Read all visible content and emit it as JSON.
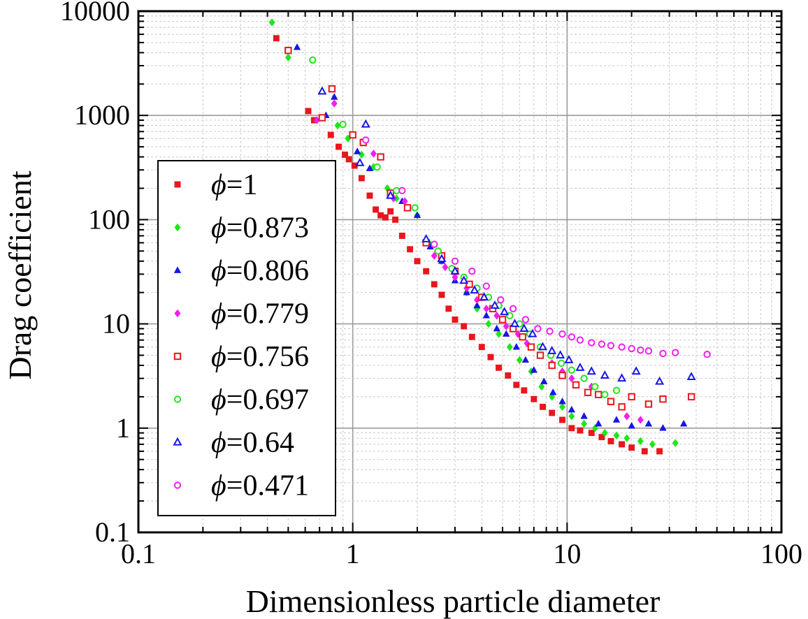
{
  "chart_data": {
    "type": "scatter",
    "xlabel": "Dimensionless particle diameter",
    "ylabel": "Drag coefficient",
    "xscale": "log",
    "yscale": "log",
    "xlim": [
      0.1,
      100
    ],
    "ylim": [
      0.1,
      10000
    ],
    "grid": true,
    "legend_position": "lower-left",
    "x_ticks": [
      "0.1",
      "1",
      "10",
      "100"
    ],
    "y_ticks": [
      "0.1",
      "1",
      "10",
      "100",
      "1000",
      "10000"
    ],
    "series": [
      {
        "name": "1",
        "marker": "square-filled",
        "color": "#e8161d",
        "x": [
          0.44,
          0.62,
          0.66,
          0.79,
          0.86,
          0.92,
          0.96,
          1.02,
          1.1,
          1.2,
          1.28,
          1.35,
          1.42,
          1.5,
          1.58,
          1.7,
          1.85,
          2.0,
          2.2,
          2.4,
          2.6,
          2.8,
          3.0,
          3.3,
          3.6,
          4.0,
          4.4,
          4.8,
          5.3,
          5.8,
          6.3,
          7.0,
          7.7,
          8.5,
          9.5,
          10.5,
          11.5,
          13,
          14.5,
          16,
          18,
          20,
          23,
          27
        ],
        "y": [
          5500,
          1100,
          900,
          650,
          500,
          420,
          380,
          330,
          250,
          170,
          125,
          110,
          105,
          120,
          100,
          70,
          52,
          40,
          32,
          24,
          19,
          14,
          11,
          9.5,
          7.5,
          6,
          4.8,
          3.8,
          3.2,
          2.6,
          2.3,
          1.9,
          1.6,
          1.4,
          1.2,
          1.0,
          0.95,
          0.9,
          0.82,
          0.75,
          0.7,
          0.65,
          0.6,
          0.6
        ]
      },
      {
        "name": "0.873",
        "marker": "diamond-filled",
        "color": "#1fe61a",
        "x": [
          0.42,
          0.5,
          0.85,
          0.95,
          1.1,
          1.25,
          1.45,
          1.6,
          1.8,
          2.0,
          2.3,
          2.6,
          3.0,
          3.4,
          3.8,
          4.3,
          4.8,
          5.4,
          6.0,
          6.8,
          7.6,
          8.5,
          9.5,
          10.5,
          12,
          13.5,
          15,
          17,
          19,
          22,
          25,
          32
        ],
        "y": [
          7800,
          3600,
          800,
          600,
          420,
          320,
          200,
          160,
          130,
          110,
          58,
          40,
          28,
          20,
          14,
          10,
          8,
          6,
          4.5,
          3.5,
          2.5,
          2,
          1.6,
          1.3,
          1.1,
          1.0,
          0.9,
          0.85,
          0.8,
          0.75,
          0.7,
          0.72
        ]
      },
      {
        "name": "0.806",
        "marker": "triangle-up-filled",
        "color": "#1616e8",
        "x": [
          0.55,
          0.75,
          0.82,
          1.05,
          1.2,
          1.5,
          1.7,
          2.0,
          2.3,
          2.6,
          3.0,
          3.4,
          3.8,
          4.2,
          4.7,
          5.2,
          5.8,
          6.4,
          7.0,
          7.8,
          8.6,
          9.5,
          10.5,
          12,
          14,
          17,
          20,
          24,
          28,
          35
        ],
        "y": [
          4500,
          1000,
          1500,
          450,
          310,
          170,
          150,
          110,
          55,
          40,
          26,
          20,
          15,
          12,
          9,
          8,
          6,
          4.5,
          3.6,
          2.8,
          2.2,
          1.8,
          1.5,
          1.3,
          1.1,
          1.2,
          1.05,
          1.1,
          1.0,
          1.1
        ]
      },
      {
        "name": "0.779",
        "marker": "diamond-filled",
        "color": "#f01ef0",
        "x": [
          0.68,
          0.82,
          1.25,
          1.55,
          1.75,
          2.4,
          2.7,
          3.0,
          3.4,
          3.8,
          4.2,
          4.7,
          5.2,
          5.9,
          6.5,
          7.5,
          8.5,
          9.5,
          10.5,
          13,
          16,
          19,
          22
        ],
        "y": [
          900,
          1300,
          430,
          160,
          150,
          45,
          35,
          28,
          22,
          17,
          14,
          12,
          9.5,
          8,
          6.5,
          5,
          4.2,
          3.5,
          3.0,
          2.5,
          1.8,
          1.3,
          1.2
        ]
      },
      {
        "name": "0.756",
        "marker": "square-open",
        "color": "#e8161d",
        "x": [
          0.5,
          0.72,
          0.8,
          1.0,
          1.12,
          1.35,
          1.5,
          1.8,
          2.2,
          2.6,
          3.0,
          3.5,
          4.0,
          4.5,
          5.0,
          5.6,
          6.2,
          6.8,
          7.5,
          8.5,
          9.5,
          11,
          12.5,
          14,
          16,
          18,
          20,
          24,
          28,
          38
        ],
        "y": [
          4200,
          950,
          1800,
          650,
          550,
          400,
          180,
          130,
          60,
          45,
          32,
          24,
          18,
          14,
          11,
          9,
          7.5,
          6,
          5,
          4,
          3.2,
          2.6,
          2.2,
          2.1,
          1.8,
          1.6,
          2.0,
          1.7,
          1.9,
          2.0
        ]
      },
      {
        "name": "0.697",
        "marker": "circle-open",
        "color": "#1fe61a",
        "x": [
          0.65,
          0.9,
          1.3,
          1.6,
          1.95,
          2.5,
          2.9,
          3.3,
          3.8,
          4.3,
          4.8,
          5.4,
          6.0,
          6.7,
          7.5,
          8.4,
          9.4,
          10.5,
          12,
          13.5,
          15,
          17
        ],
        "y": [
          3400,
          820,
          320,
          190,
          130,
          50,
          34,
          28,
          22,
          18,
          15,
          12,
          10,
          8,
          6,
          5,
          4.2,
          3.6,
          3.0,
          2.5,
          2.1,
          2.3
        ]
      },
      {
        "name": "0.64",
        "marker": "triangle-up-open",
        "color": "#1616e8",
        "x": [
          0.72,
          1.08,
          1.15,
          1.5,
          2.2,
          2.6,
          3.0,
          3.3,
          3.7,
          4.1,
          4.6,
          5.1,
          5.7,
          6.3,
          6.9,
          7.7,
          8.5,
          9.3,
          10.2,
          11.5,
          13,
          15,
          18,
          21,
          27,
          38
        ],
        "y": [
          1700,
          350,
          820,
          170,
          65,
          42,
          32,
          26,
          21,
          18,
          15,
          13,
          10,
          9,
          8,
          6,
          5.5,
          5,
          4.5,
          3.8,
          3.5,
          3.2,
          3.0,
          3.5,
          2.8,
          3.1
        ]
      },
      {
        "name": "0.471",
        "marker": "circle-open",
        "color": "#f01ef0",
        "x": [
          1.15,
          1.7,
          2.4,
          3.0,
          3.6,
          4.2,
          4.9,
          5.6,
          6.4,
          7.3,
          8.3,
          9.5,
          10.5,
          11.5,
          13,
          14.5,
          16,
          18,
          20,
          22,
          24,
          28,
          32,
          45
        ],
        "y": [
          580,
          190,
          58,
          40,
          32,
          23,
          17,
          14,
          11,
          9,
          8.5,
          8.0,
          7.5,
          7.0,
          6.6,
          6.4,
          6.2,
          6.0,
          5.8,
          5.6,
          5.5,
          5.2,
          5.3,
          5.1
        ]
      }
    ]
  }
}
